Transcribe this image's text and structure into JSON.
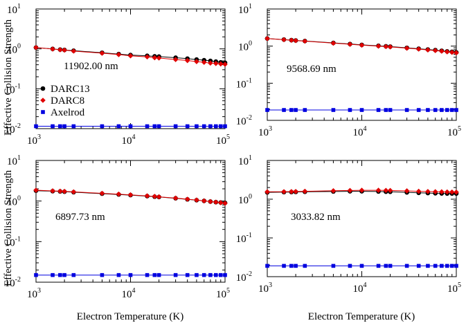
{
  "figure": {
    "ylabel": "Effective Collision Strength",
    "xlabel": "Electron Temperature (K)"
  },
  "colors": {
    "darc13": "#000000",
    "darc8": "#e00000",
    "axelrod": "#0000e0"
  },
  "legend": [
    {
      "name": "DARC13",
      "marker": "circle",
      "color": "#000000"
    },
    {
      "name": "DARC8",
      "marker": "diamond",
      "color": "#e00000"
    },
    {
      "name": "Axelrod",
      "marker": "square",
      "color": "#0000e0"
    }
  ],
  "chart_data": [
    {
      "type": "line",
      "title": "11902.00 nm",
      "xscale": "log",
      "yscale": "log",
      "xlim": [
        1000,
        100000
      ],
      "ylim": [
        0.01,
        10
      ],
      "xticks": [
        {
          "b": "10",
          "e": "3"
        },
        {
          "b": "10",
          "e": "4"
        },
        {
          "b": "10",
          "e": "5"
        }
      ],
      "yticks": [
        {
          "b": "10",
          "e": "-2"
        },
        {
          "b": "10",
          "e": "-1"
        },
        {
          "b": "10",
          "e": "0"
        },
        {
          "b": "10",
          "e": "1"
        }
      ],
      "legend": "inside-left",
      "series": [
        {
          "name": "DARC13",
          "x": [
            1000,
            1500,
            1800,
            2000,
            2500,
            5000,
            7500,
            10000,
            15000,
            18000,
            20000,
            30000,
            40000,
            50000,
            60000,
            70000,
            80000,
            90000,
            100000
          ],
          "y": [
            1.08,
            1.0,
            0.96,
            0.94,
            0.9,
            0.8,
            0.74,
            0.7,
            0.67,
            0.65,
            0.64,
            0.6,
            0.57,
            0.54,
            0.52,
            0.5,
            0.48,
            0.46,
            0.45
          ]
        },
        {
          "name": "DARC8",
          "x": [
            1000,
            1500,
            1800,
            2000,
            2500,
            5000,
            7500,
            10000,
            15000,
            18000,
            20000,
            30000,
            40000,
            50000,
            60000,
            70000,
            80000,
            90000,
            100000
          ],
          "y": [
            1.08,
            0.99,
            0.95,
            0.93,
            0.88,
            0.78,
            0.72,
            0.67,
            0.63,
            0.6,
            0.59,
            0.54,
            0.51,
            0.48,
            0.46,
            0.44,
            0.43,
            0.42,
            0.41
          ]
        },
        {
          "name": "Axelrod",
          "x": [
            1000,
            1500,
            1800,
            2000,
            2500,
            5000,
            7500,
            10000,
            15000,
            18000,
            20000,
            30000,
            40000,
            50000,
            60000,
            70000,
            80000,
            90000,
            100000
          ],
          "y": [
            0.0115,
            0.0115,
            0.0115,
            0.0115,
            0.0115,
            0.0115,
            0.0115,
            0.0115,
            0.0115,
            0.0115,
            0.0115,
            0.0115,
            0.0115,
            0.0115,
            0.0115,
            0.0115,
            0.0115,
            0.0115,
            0.0115
          ]
        }
      ]
    },
    {
      "type": "line",
      "title": "9568.69 nm",
      "xscale": "log",
      "yscale": "log",
      "xlim": [
        1000,
        100000
      ],
      "ylim": [
        0.01,
        10
      ],
      "xticks": [
        {
          "b": "10",
          "e": "3"
        },
        {
          "b": "10",
          "e": "4"
        },
        {
          "b": "10",
          "e": "5"
        }
      ],
      "yticks": [
        {
          "b": "10",
          "e": "-2"
        },
        {
          "b": "10",
          "e": "-1"
        },
        {
          "b": "10",
          "e": "0"
        },
        {
          "b": "10",
          "e": "1"
        }
      ],
      "series": [
        {
          "name": "DARC13",
          "x": [
            1000,
            1500,
            1800,
            2000,
            2500,
            5000,
            7500,
            10000,
            15000,
            18000,
            20000,
            30000,
            40000,
            50000,
            60000,
            70000,
            80000,
            90000,
            100000
          ],
          "y": [
            1.6,
            1.5,
            1.45,
            1.42,
            1.37,
            1.22,
            1.14,
            1.08,
            1.02,
            0.99,
            0.97,
            0.9,
            0.85,
            0.81,
            0.78,
            0.75,
            0.72,
            0.7,
            0.68
          ]
        },
        {
          "name": "DARC8",
          "x": [
            1000,
            1500,
            1800,
            2000,
            2500,
            5000,
            7500,
            10000,
            15000,
            18000,
            20000,
            30000,
            40000,
            50000,
            60000,
            70000,
            80000,
            90000,
            100000
          ],
          "y": [
            1.6,
            1.49,
            1.44,
            1.41,
            1.36,
            1.2,
            1.12,
            1.06,
            1.0,
            0.97,
            0.95,
            0.88,
            0.83,
            0.79,
            0.76,
            0.73,
            0.7,
            0.68,
            0.66
          ]
        },
        {
          "name": "Axelrod",
          "x": [
            1000,
            1500,
            1800,
            2000,
            2500,
            5000,
            7500,
            10000,
            15000,
            18000,
            20000,
            30000,
            40000,
            50000,
            60000,
            70000,
            80000,
            90000,
            100000
          ],
          "y": [
            0.019,
            0.019,
            0.019,
            0.019,
            0.019,
            0.019,
            0.019,
            0.019,
            0.019,
            0.019,
            0.019,
            0.019,
            0.019,
            0.019,
            0.019,
            0.019,
            0.019,
            0.019,
            0.019
          ]
        }
      ]
    },
    {
      "type": "line",
      "title": "6897.73 nm",
      "xscale": "log",
      "yscale": "log",
      "xlim": [
        1000,
        100000
      ],
      "ylim": [
        0.01,
        10
      ],
      "xticks": [
        {
          "b": "10",
          "e": "3"
        },
        {
          "b": "10",
          "e": "4"
        },
        {
          "b": "10",
          "e": "5"
        }
      ],
      "yticks": [
        {
          "b": "10",
          "e": "-2"
        },
        {
          "b": "10",
          "e": "-1"
        },
        {
          "b": "10",
          "e": "0"
        },
        {
          "b": "10",
          "e": "1"
        }
      ],
      "series": [
        {
          "name": "DARC13",
          "x": [
            1000,
            1500,
            1800,
            2000,
            2500,
            5000,
            7500,
            10000,
            15000,
            18000,
            20000,
            30000,
            40000,
            50000,
            60000,
            70000,
            80000,
            90000,
            100000
          ],
          "y": [
            1.8,
            1.75,
            1.72,
            1.7,
            1.65,
            1.52,
            1.45,
            1.4,
            1.32,
            1.28,
            1.26,
            1.17,
            1.1,
            1.05,
            1.01,
            0.97,
            0.94,
            0.92,
            0.9
          ]
        },
        {
          "name": "DARC8",
          "x": [
            1000,
            1500,
            1800,
            2000,
            2500,
            5000,
            7500,
            10000,
            15000,
            18000,
            20000,
            30000,
            40000,
            50000,
            60000,
            70000,
            80000,
            90000,
            100000
          ],
          "y": [
            1.85,
            1.78,
            1.75,
            1.73,
            1.68,
            1.55,
            1.48,
            1.42,
            1.34,
            1.3,
            1.27,
            1.18,
            1.11,
            1.06,
            1.01,
            0.97,
            0.94,
            0.91,
            0.88
          ]
        },
        {
          "name": "Axelrod",
          "x": [
            1000,
            1500,
            1800,
            2000,
            2500,
            5000,
            7500,
            10000,
            15000,
            18000,
            20000,
            30000,
            40000,
            50000,
            60000,
            70000,
            80000,
            90000,
            100000
          ],
          "y": [
            0.015,
            0.015,
            0.015,
            0.015,
            0.015,
            0.015,
            0.015,
            0.015,
            0.015,
            0.015,
            0.015,
            0.015,
            0.015,
            0.015,
            0.015,
            0.015,
            0.015,
            0.015,
            0.015
          ]
        }
      ]
    },
    {
      "type": "line",
      "title": "3033.82 nm",
      "xscale": "log",
      "yscale": "log",
      "xlim": [
        1000,
        100000
      ],
      "ylim": [
        0.01,
        10
      ],
      "xticks": [
        {
          "b": "10",
          "e": "3"
        },
        {
          "b": "10",
          "e": "4"
        },
        {
          "b": "10",
          "e": "5"
        }
      ],
      "yticks": [
        {
          "b": "10",
          "e": "-2"
        },
        {
          "b": "10",
          "e": "-1"
        },
        {
          "b": "10",
          "e": "0"
        },
        {
          "b": "10",
          "e": "1"
        }
      ],
      "series": [
        {
          "name": "DARC13",
          "x": [
            1000,
            1500,
            1800,
            2000,
            2500,
            5000,
            7500,
            10000,
            15000,
            18000,
            20000,
            30000,
            40000,
            50000,
            60000,
            70000,
            80000,
            90000,
            100000
          ],
          "y": [
            1.5,
            1.52,
            1.53,
            1.54,
            1.55,
            1.58,
            1.6,
            1.6,
            1.58,
            1.56,
            1.55,
            1.5,
            1.46,
            1.44,
            1.42,
            1.41,
            1.4,
            1.4,
            1.4
          ]
        },
        {
          "name": "DARC8",
          "x": [
            1000,
            1500,
            1800,
            2000,
            2500,
            5000,
            7500,
            10000,
            15000,
            18000,
            20000,
            30000,
            40000,
            50000,
            60000,
            70000,
            80000,
            90000,
            100000
          ],
          "y": [
            1.55,
            1.56,
            1.57,
            1.58,
            1.6,
            1.65,
            1.68,
            1.7,
            1.7,
            1.69,
            1.68,
            1.64,
            1.6,
            1.58,
            1.56,
            1.55,
            1.54,
            1.53,
            1.52
          ]
        },
        {
          "name": "Axelrod",
          "x": [
            1000,
            1500,
            1800,
            2000,
            2500,
            5000,
            7500,
            10000,
            15000,
            18000,
            20000,
            30000,
            40000,
            50000,
            60000,
            70000,
            80000,
            90000,
            100000
          ],
          "y": [
            0.019,
            0.019,
            0.019,
            0.019,
            0.019,
            0.019,
            0.019,
            0.019,
            0.019,
            0.019,
            0.019,
            0.019,
            0.019,
            0.019,
            0.019,
            0.019,
            0.019,
            0.019,
            0.019
          ]
        }
      ]
    }
  ]
}
